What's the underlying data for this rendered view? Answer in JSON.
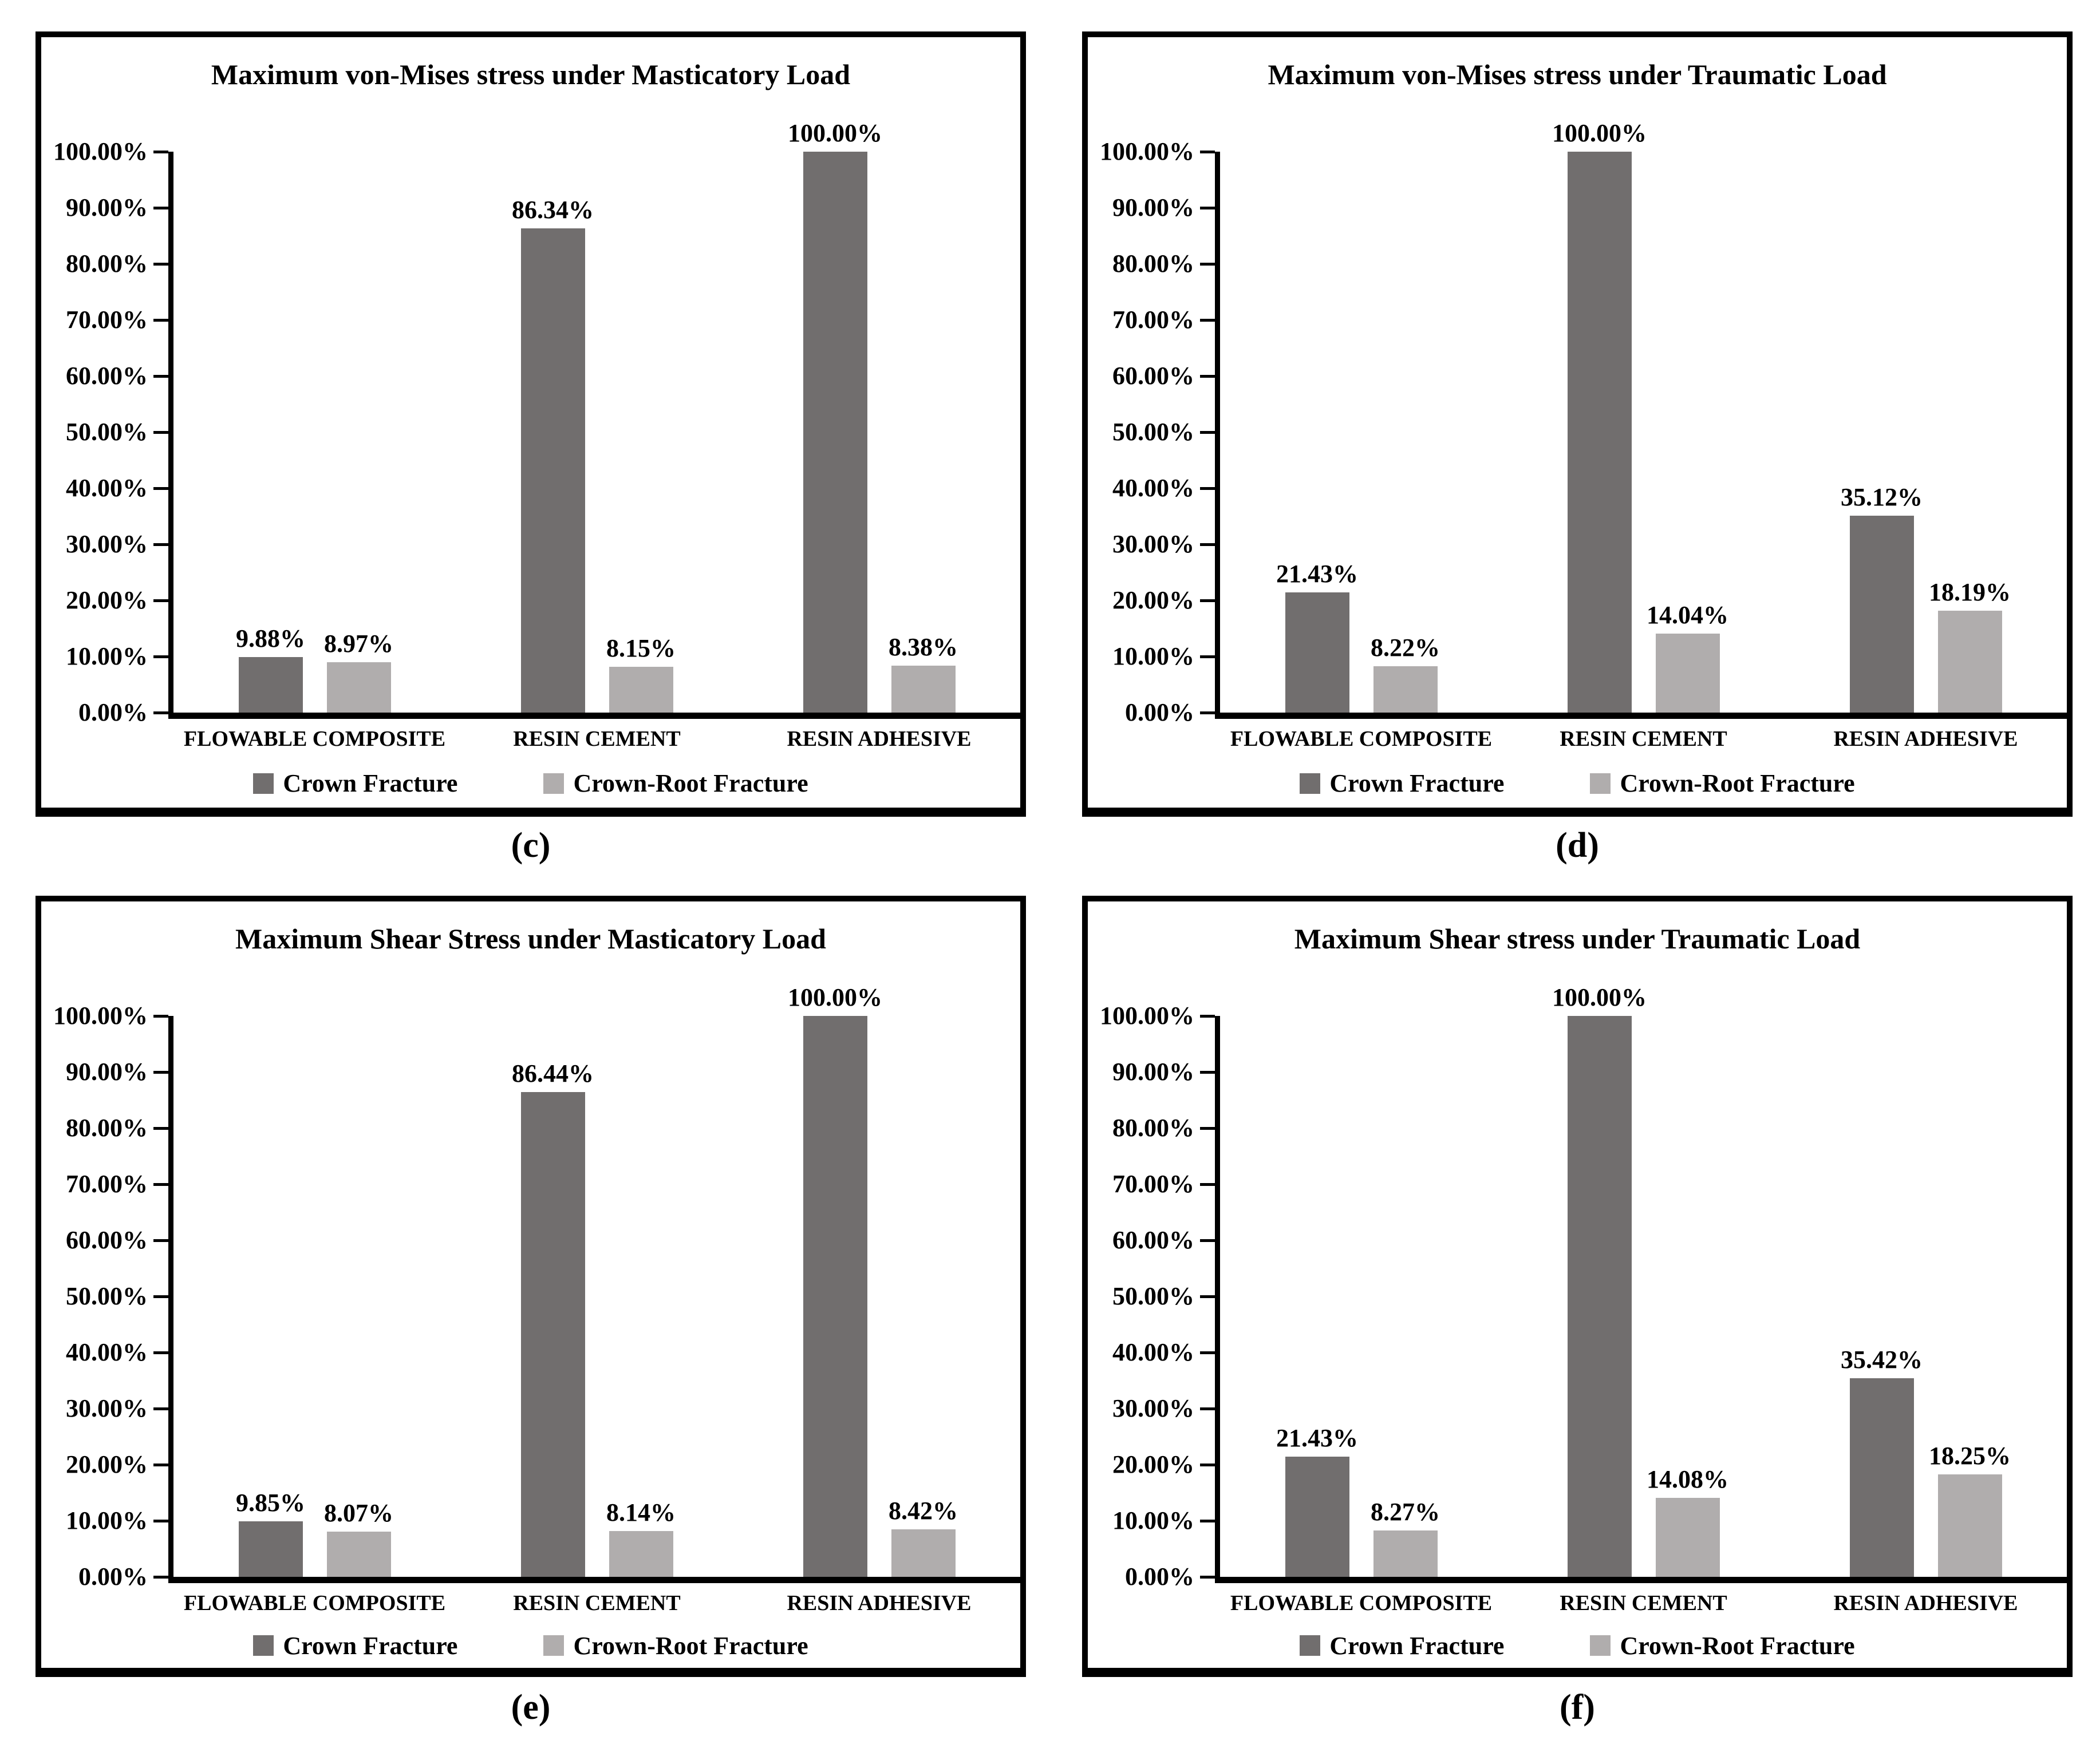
{
  "colors": {
    "crown_fracture": "#716e6e",
    "crown_root_fracture": "#b0adad",
    "axis": "#000000",
    "panel_border": "#000000",
    "background": "#ffffff"
  },
  "y_axis": {
    "ticks": [
      {
        "label": "100.00%",
        "value": 100
      },
      {
        "label": "90.00%",
        "value": 90
      },
      {
        "label": "80.00%",
        "value": 80
      },
      {
        "label": "70.00%",
        "value": 70
      },
      {
        "label": "60.00%",
        "value": 60
      },
      {
        "label": "50.00%",
        "value": 50
      },
      {
        "label": "40.00%",
        "value": 40
      },
      {
        "label": "30.00%",
        "value": 30
      },
      {
        "label": "20.00%",
        "value": 20
      },
      {
        "label": "10.00%",
        "value": 10
      },
      {
        "label": "0.00%",
        "value": 0
      }
    ]
  },
  "legend": {
    "items": [
      {
        "label": "Crown Fracture",
        "color": "#716e6e"
      },
      {
        "label": "Crown-Root Fracture",
        "color": "#b0adad"
      }
    ]
  },
  "chart_data": [
    {
      "type": "bar",
      "caption": "(c)",
      "title": "Maximum von-Mises stress under Masticatory Load",
      "xlabel": "",
      "ylabel": "",
      "ylim": [
        0,
        100
      ],
      "grid": false,
      "legend_position": "bottom",
      "categories": [
        "FLOWABLE COMPOSITE",
        "RESIN CEMENT",
        "RESIN ADHESIVE"
      ],
      "series": [
        {
          "name": "Crown Fracture",
          "values": [
            9.88,
            86.34,
            100.0
          ],
          "labels": [
            "9.88%",
            "86.34%",
            "100.00%"
          ]
        },
        {
          "name": "Crown-Root Fracture",
          "values": [
            8.97,
            8.15,
            8.38
          ],
          "labels": [
            "8.97%",
            "8.15%",
            "8.38%"
          ]
        }
      ]
    },
    {
      "type": "bar",
      "caption": "(d)",
      "title": "Maximum von-Mises stress under Traumatic Load",
      "xlabel": "",
      "ylabel": "",
      "ylim": [
        0,
        100
      ],
      "grid": false,
      "legend_position": "bottom",
      "categories": [
        "FLOWABLE COMPOSITE",
        "RESIN CEMENT",
        "RESIN ADHESIVE"
      ],
      "series": [
        {
          "name": "Crown Fracture",
          "values": [
            21.43,
            100.0,
            35.12
          ],
          "labels": [
            "21.43%",
            "100.00%",
            "35.12%"
          ]
        },
        {
          "name": "Crown-Root Fracture",
          "values": [
            8.22,
            14.04,
            18.19
          ],
          "labels": [
            "8.22%",
            "14.04%",
            "18.19%"
          ]
        }
      ]
    },
    {
      "type": "bar",
      "caption": "(e)",
      "title": "Maximum Shear Stress under Masticatory Load",
      "xlabel": "",
      "ylabel": "",
      "ylim": [
        0,
        100
      ],
      "grid": false,
      "legend_position": "bottom",
      "categories": [
        "FLOWABLE COMPOSITE",
        "RESIN CEMENT",
        "RESIN ADHESIVE"
      ],
      "series": [
        {
          "name": "Crown Fracture",
          "values": [
            9.85,
            86.44,
            100.0
          ],
          "labels": [
            "9.85%",
            "86.44%",
            "100.00%"
          ]
        },
        {
          "name": "Crown-Root Fracture",
          "values": [
            8.07,
            8.14,
            8.42
          ],
          "labels": [
            "8.07%",
            "8.14%",
            "8.42%"
          ]
        }
      ]
    },
    {
      "type": "bar",
      "caption": "(f)",
      "title": "Maximum Shear stress under Traumatic Load",
      "xlabel": "",
      "ylabel": "",
      "ylim": [
        0,
        100
      ],
      "grid": false,
      "legend_position": "bottom",
      "categories": [
        "FLOWABLE COMPOSITE",
        "RESIN CEMENT",
        "RESIN ADHESIVE"
      ],
      "series": [
        {
          "name": "Crown Fracture",
          "values": [
            21.43,
            100.0,
            35.42
          ],
          "labels": [
            "21.43%",
            "100.00%",
            "35.42%"
          ]
        },
        {
          "name": "Crown-Root Fracture",
          "values": [
            8.27,
            14.08,
            18.25
          ],
          "labels": [
            "8.27%",
            "14.08%",
            "18.25%"
          ]
        }
      ]
    }
  ]
}
